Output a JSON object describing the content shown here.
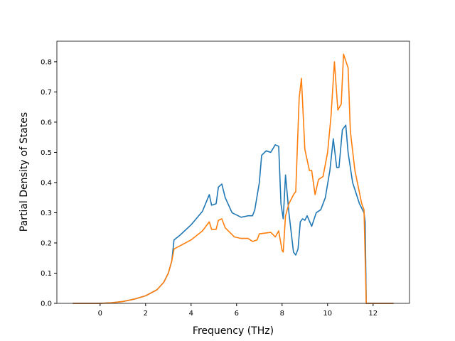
{
  "chart_data": {
    "type": "line",
    "x_label": "Frequency (THz)",
    "y_label": "Partial Density of States",
    "xlim": [
      -1.9,
      13.6
    ],
    "ylim": [
      0,
      0.868
    ],
    "xticks": [
      0,
      2,
      4,
      6,
      8,
      10,
      12
    ],
    "yticks": [
      {
        "value": 0,
        "label": "0.0"
      },
      0.1,
      0.2,
      0.3,
      0.4,
      0.5,
      0.6,
      0.7,
      0.8
    ],
    "series": [
      {
        "color": "#1f77b4",
        "x": [
          -1.2,
          0,
          0.5,
          1,
          1.5,
          2,
          2.5,
          2.8,
          3.0,
          3.15,
          3.25,
          3.5,
          4,
          4.5,
          4.8,
          4.9,
          5.1,
          5.2,
          5.35,
          5.5,
          5.8,
          6.2,
          6.5,
          6.7,
          6.8,
          7.0,
          7.1,
          7.3,
          7.5,
          7.7,
          7.85,
          7.95,
          8.05,
          8.15,
          8.3,
          8.5,
          8.6,
          8.7,
          8.8,
          8.9,
          9.0,
          9.1,
          9.3,
          9.5,
          9.7,
          9.9,
          10.1,
          10.25,
          10.4,
          10.5,
          10.65,
          10.8,
          10.9,
          11.1,
          11.4,
          11.6,
          11.65,
          11.7,
          12.9
        ],
        "values": [
          0,
          0,
          0.002,
          0.006,
          0.014,
          0.025,
          0.045,
          0.07,
          0.1,
          0.14,
          0.21,
          0.225,
          0.26,
          0.305,
          0.36,
          0.325,
          0.33,
          0.385,
          0.395,
          0.35,
          0.3,
          0.285,
          0.29,
          0.29,
          0.31,
          0.4,
          0.49,
          0.505,
          0.5,
          0.525,
          0.52,
          0.33,
          0.28,
          0.425,
          0.3,
          0.17,
          0.16,
          0.18,
          0.27,
          0.28,
          0.275,
          0.29,
          0.255,
          0.3,
          0.31,
          0.35,
          0.44,
          0.545,
          0.45,
          0.45,
          0.575,
          0.59,
          0.5,
          0.4,
          0.33,
          0.3,
          0.27,
          0,
          0
        ]
      },
      {
        "color": "#ff7f0e",
        "x": [
          -1.2,
          0,
          0.5,
          1,
          1.5,
          2,
          2.5,
          2.8,
          3.0,
          3.15,
          3.25,
          3.5,
          4,
          4.5,
          4.8,
          4.9,
          5.1,
          5.2,
          5.35,
          5.5,
          5.9,
          6.2,
          6.5,
          6.7,
          6.9,
          7.0,
          7.5,
          7.7,
          7.85,
          8.0,
          8.05,
          8.15,
          8.3,
          8.5,
          8.6,
          8.75,
          8.85,
          9.0,
          9.2,
          9.3,
          9.45,
          9.6,
          9.8,
          10.0,
          10.15,
          10.3,
          10.45,
          10.6,
          10.7,
          10.9,
          11.0,
          11.2,
          11.5,
          11.6,
          11.7,
          12.9
        ],
        "values": [
          0,
          0,
          0.002,
          0.006,
          0.014,
          0.025,
          0.045,
          0.07,
          0.1,
          0.14,
          0.18,
          0.19,
          0.21,
          0.24,
          0.27,
          0.245,
          0.245,
          0.275,
          0.28,
          0.25,
          0.22,
          0.215,
          0.215,
          0.205,
          0.21,
          0.23,
          0.235,
          0.22,
          0.24,
          0.175,
          0.17,
          0.29,
          0.33,
          0.36,
          0.37,
          0.68,
          0.745,
          0.51,
          0.44,
          0.44,
          0.36,
          0.41,
          0.42,
          0.5,
          0.62,
          0.8,
          0.64,
          0.66,
          0.825,
          0.78,
          0.57,
          0.44,
          0.33,
          0.31,
          0,
          0
        ]
      }
    ]
  }
}
